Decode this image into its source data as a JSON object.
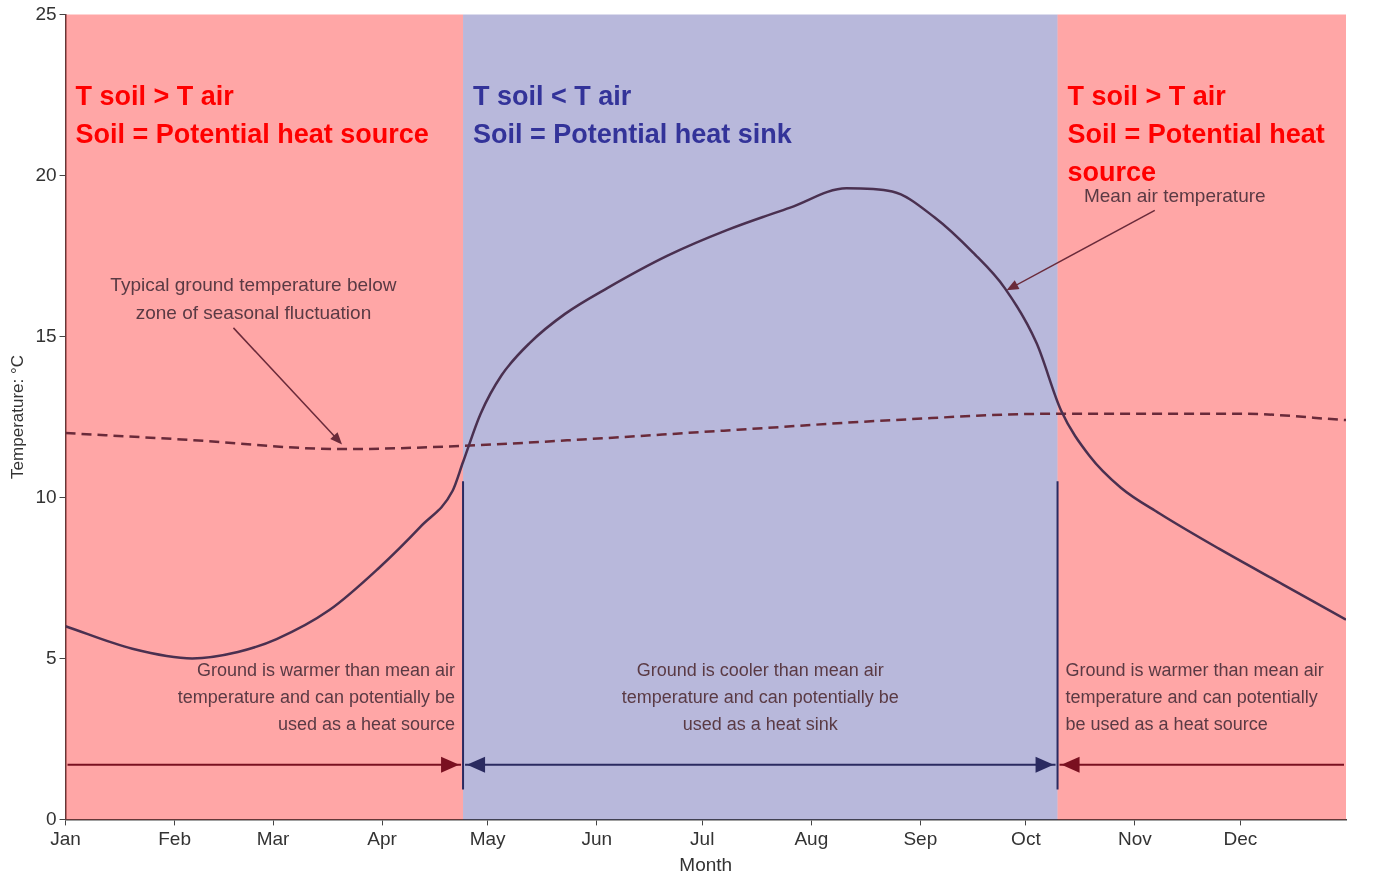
{
  "chart_data": {
    "type": "line",
    "xlabel": "Month",
    "ylabel": "Temperature: °C",
    "xlim": [
      "--01-01",
      "--12-31"
    ],
    "ylim": [
      0,
      25
    ],
    "xticks": [
      {
        "value": "--01-01",
        "label": "Jan"
      },
      {
        "value": "--02-01",
        "label": "Feb"
      },
      {
        "value": "--03-01",
        "label": "Mar"
      },
      {
        "value": "--04-01",
        "label": "Apr"
      },
      {
        "value": "--05-01",
        "label": "May"
      },
      {
        "value": "--06-01",
        "label": "Jun"
      },
      {
        "value": "--07-01",
        "label": "Jul"
      },
      {
        "value": "--08-01",
        "label": "Aug"
      },
      {
        "value": "--09-01",
        "label": "Sep"
      },
      {
        "value": "--10-01",
        "label": "Oct"
      },
      {
        "value": "--11-01",
        "label": "Nov"
      },
      {
        "value": "--12-01",
        "label": "Dec"
      }
    ],
    "yticks": [
      0,
      5,
      10,
      15,
      20,
      25
    ],
    "grid": false,
    "legend": false,
    "marker": "none",
    "series": [
      {
        "color": "#4a3050",
        "line_style": "solid",
        "x": [
          "--01-01",
          "--01-20",
          "--02-06",
          "--02-19",
          "--03-02",
          "--03-17",
          "--03-31",
          "--04-12",
          "--04-21",
          "--04-24",
          "--04-29",
          "--05-05",
          "--05-13",
          "--05-23",
          "--06-04",
          "--06-21",
          "--07-08",
          "--07-26",
          "--08-11",
          "--08-24",
          "--09-05",
          "--09-16",
          "--09-25",
          "--10-04",
          "--10-11",
          "--10-19",
          "--10-28",
          "--11-08",
          "--11-25",
          "--12-13",
          "--12-31"
        ],
        "values": [
          6.0,
          5.3,
          5.0,
          5.2,
          5.6,
          6.5,
          7.8,
          9.1,
          10.2,
          11.1,
          12.6,
          13.8,
          14.8,
          15.7,
          16.5,
          17.5,
          18.3,
          19.0,
          19.6,
          19.5,
          18.7,
          17.6,
          16.5,
          14.8,
          12.7,
          11.3,
          10.3,
          9.5,
          8.4,
          7.3,
          6.2
        ]
      },
      {
        "color": "#6a2a3a",
        "line_style": "dashed",
        "x": [
          "--01-01",
          "--02-03",
          "--03-21",
          "--04-24",
          "--05-28",
          "--07-11",
          "--08-24",
          "--10-10",
          "--11-05",
          "--12-01",
          "--12-31"
        ],
        "values": [
          12.0,
          11.8,
          11.5,
          11.6,
          11.8,
          12.1,
          12.4,
          12.6,
          12.6,
          12.6,
          12.4
        ]
      }
    ],
    "bands": [
      {
        "axis": "x",
        "from": "--01-01",
        "to": "--04-24",
        "label": "T soil > T air\nSoil = Potential heat source",
        "color": "#ff0000"
      },
      {
        "axis": "x",
        "from": "--04-24",
        "to": "--10-10",
        "label": "T soil < T air\nSoil = Potential heat sink",
        "color": "#333399"
      },
      {
        "axis": "x",
        "from": "--10-10",
        "to": "--12-31",
        "label": "T soil > T air\nSoil = Potential heat source",
        "color": "#ff0000"
      }
    ],
    "ref_lines": [
      {
        "axis": "x",
        "value": "--04-24",
        "color": "#2a2a60"
      },
      {
        "axis": "x",
        "value": "--10-10",
        "color": "#2a2a60"
      }
    ],
    "annotations": [
      {
        "text": "Mean air temperature",
        "x": "--09-25",
        "y": 16.4
      },
      {
        "text": "Typical ground temperature below zone of seasonal fluctuation",
        "x": "--03-21",
        "y": 11.6
      },
      "Ground is warmer than mean air temperature and can potentially be used as a heat source",
      "Ground is cooler than mean air temperature and can potentially be used as a heat sink",
      "Ground is warmer than mean air temperature and can potentially be used as a heat source"
    ]
  }
}
